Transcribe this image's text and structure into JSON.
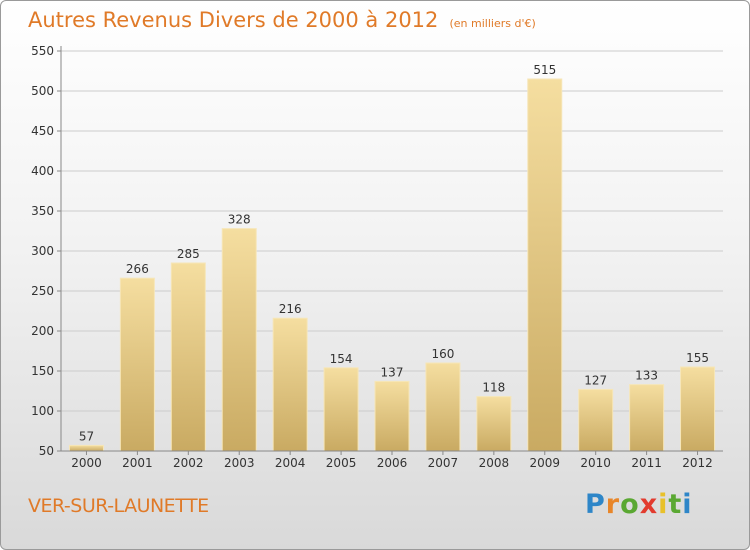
{
  "header": {
    "title": "Autres Revenus Divers de 2000 à 2012",
    "subtitle": "(en milliers d'€)"
  },
  "footer": {
    "commune": "VER-SUR-LAUNETTE",
    "logo": {
      "letters": [
        "P",
        "r",
        "o",
        "x",
        "i",
        "t",
        "i"
      ],
      "colors": [
        "#2e86c8",
        "#e8862a",
        "#5aa832",
        "#e23b2e",
        "#e8c12a",
        "#5aa832",
        "#2e86c8"
      ]
    }
  },
  "colors": {
    "title": "#e07a28",
    "bar_light": "#f5dea0",
    "bar_dark": "#c9aa62",
    "grid": "#cccccc",
    "axis": "#888888"
  },
  "chart_data": {
    "type": "bar",
    "categories": [
      "2000",
      "2001",
      "2002",
      "2003",
      "2004",
      "2005",
      "2006",
      "2007",
      "2008",
      "2009",
      "2010",
      "2011",
      "2012"
    ],
    "values": [
      57,
      266,
      285,
      328,
      216,
      154,
      137,
      160,
      118,
      515,
      127,
      133,
      155
    ],
    "ylim": [
      50,
      550
    ],
    "yticks": [
      50,
      100,
      150,
      200,
      250,
      300,
      350,
      400,
      450,
      500,
      550
    ],
    "grid": true,
    "data_labels": true
  }
}
